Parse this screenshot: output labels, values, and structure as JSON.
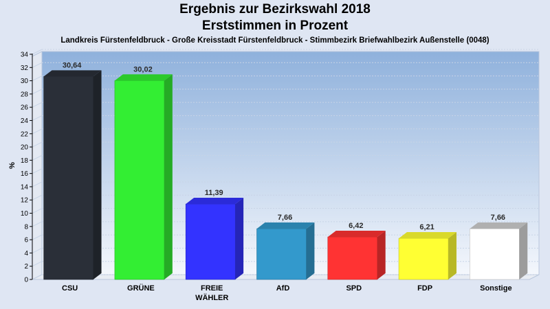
{
  "header": {
    "title_line1": "Ergebnis zur Bezirkswahl 2018",
    "title_line2": "Erststimmen in Prozent",
    "subtitle": "Landkreis Fürstenfeldbruck - Große Kreisstadt Fürstenfeldbruck - Stimmbezirk Briefwahlbezirk Außenstelle (0048)"
  },
  "chart_data": {
    "type": "bar",
    "title": "Ergebnis zur Bezirkswahl 2018 Erststimmen in Prozent",
    "subtitle": "Landkreis Fürstenfeldbruck - Große Kreisstadt Fürstenfeldbruck - Stimmbezirk Briefwahlbezirk Außenstelle (0048)",
    "xlabel": "",
    "ylabel": "%",
    "ylim": [
      0,
      34
    ],
    "yticks": [
      0,
      2,
      4,
      6,
      8,
      10,
      12,
      14,
      16,
      18,
      20,
      22,
      24,
      26,
      28,
      30,
      32,
      34
    ],
    "grid": true,
    "categories": [
      "CSU",
      "GRÜNE",
      "FREIE WÄHLER",
      "AfD",
      "SPD",
      "FDP",
      "Sonstige"
    ],
    "category_lines": [
      [
        "CSU"
      ],
      [
        "GRÜNE"
      ],
      [
        "FREIE",
        "WÄHLER"
      ],
      [
        "AfD"
      ],
      [
        "SPD"
      ],
      [
        "FDP"
      ],
      [
        "Sonstige"
      ]
    ],
    "values": [
      30.64,
      30.02,
      11.39,
      7.66,
      6.42,
      6.21,
      7.66
    ],
    "value_labels": [
      "30,64",
      "30,02",
      "11,39",
      "7,66",
      "6,42",
      "6,21",
      "7,66"
    ],
    "colors": [
      "#2a2f38",
      "#33ee33",
      "#3333ff",
      "#3399cc",
      "#ff3333",
      "#ffff33",
      "#ffffff"
    ]
  }
}
